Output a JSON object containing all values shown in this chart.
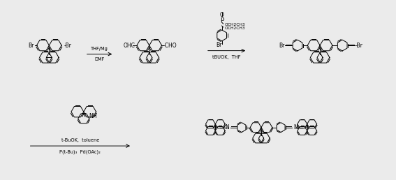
{
  "bg_color": "#ebebeb",
  "line_color": "#000000",
  "text_color": "#000000",
  "lw": 0.7,
  "fs": 5.5,
  "fs_sm": 4.8,
  "r1": 10,
  "r2": 8,
  "r3": 7,
  "reaction1_top": "THF/Mg",
  "reaction1_bot": "DMF",
  "reaction2_top": "tBUOK,  THF",
  "reaction3_top": "t-BuOK,  toluene",
  "reaction3_bot": "P(t-Bu)₃  Pd(OAc)₂"
}
